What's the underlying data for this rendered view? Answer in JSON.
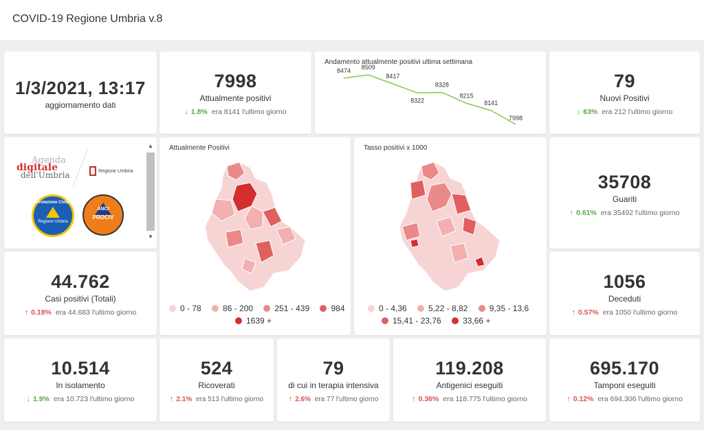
{
  "header": {
    "title": "COVID-19 Regione Umbria v.8"
  },
  "update": {
    "value": "1/3/2021, 13:17",
    "label": "aggiornamento dati"
  },
  "positivi": {
    "value": "7998",
    "label": "Attualmente positivi",
    "pct": "1.8%",
    "prev": "era 8141 l'ultimo giorno"
  },
  "trend": {
    "title": "Andamento attualmente positivi ultima settimana",
    "chart_data": {
      "type": "line",
      "title": "Andamento attualmente positivi ultima settimana",
      "series": [
        {
          "values": [
            8474,
            8509,
            8417,
            8322,
            8328,
            8215,
            8141,
            7998
          ]
        }
      ],
      "labels": [
        "8474",
        "8509",
        "8417",
        "8322",
        "8328",
        "8215",
        "8141",
        "7998"
      ],
      "color": "#8bc34a"
    }
  },
  "nuovi": {
    "value": "79",
    "label": "Nuovi Positivi",
    "pct": "63%",
    "prev": "era 212 l'ultimo giorno"
  },
  "logos": {
    "agenda_line1": "Agenda",
    "agenda_line2": "digitale",
    "agenda_line3": "dell'Umbria",
    "regione": "Regione Umbria",
    "pc_text": "Protezione Civile",
    "pc_sub": "Regione Umbria",
    "anci": "ANCI",
    "procv": "PROCIV"
  },
  "map1": {
    "title": "Attualmente Positivi",
    "legend": [
      {
        "label": "0 - 78",
        "color": "#f7d4d4"
      },
      {
        "label": "86 - 200",
        "color": "#f2b0b0"
      },
      {
        "label": "251 - 439",
        "color": "#ea8989"
      },
      {
        "label": "984",
        "color": "#e06060"
      },
      {
        "label": "1639 +",
        "color": "#d32f2f"
      }
    ]
  },
  "map2": {
    "title": "Tasso positivi x 1000",
    "legend": [
      {
        "label": "0 - 4,36",
        "color": "#f7d4d4"
      },
      {
        "label": "5,22 - 8,82",
        "color": "#f2b0b0"
      },
      {
        "label": "9,35 - 13,6",
        "color": "#ea8989"
      },
      {
        "label": "15,41 - 23,76",
        "color": "#e06060"
      },
      {
        "label": "33,66 +",
        "color": "#d32f2f"
      }
    ]
  },
  "guariti": {
    "value": "35708",
    "label": "Guariti",
    "pct": "0.61%",
    "prev": "era 35492 l'ultimo giorno"
  },
  "casi": {
    "value": "44.762",
    "label": "Casi positivi (Totali)",
    "pct": "0.18%",
    "prev": "era 44.683 l'ultimo giorno"
  },
  "deceduti": {
    "value": "1056",
    "label": "Deceduti",
    "pct": "0.57%",
    "prev": "era 1050 l'ultimo giorno"
  },
  "isolamento": {
    "value": "10.514",
    "label": "In isolamento",
    "pct": "1.9%",
    "prev": "era 10.723 l'ultimo giorno"
  },
  "ricoverati": {
    "value": "524",
    "label": "Ricoverati",
    "pct": "2.1%",
    "prev": "era 513 l'ultimo giorno"
  },
  "intensiva": {
    "value": "79",
    "label": "di cui in terapia intensiva",
    "pct": "2.6%",
    "prev": "era 77 l'ultimo giorno"
  },
  "antigenici": {
    "value": "119.208",
    "label": "Antigenici eseguiti",
    "pct": "0.36%",
    "prev": "era 118.775 l'ultimo giorno"
  },
  "tamponi": {
    "value": "695.170",
    "label": "Tamponi eseguiti",
    "pct": "0.12%",
    "prev": "era 694.306 l'ultimo giorno"
  }
}
